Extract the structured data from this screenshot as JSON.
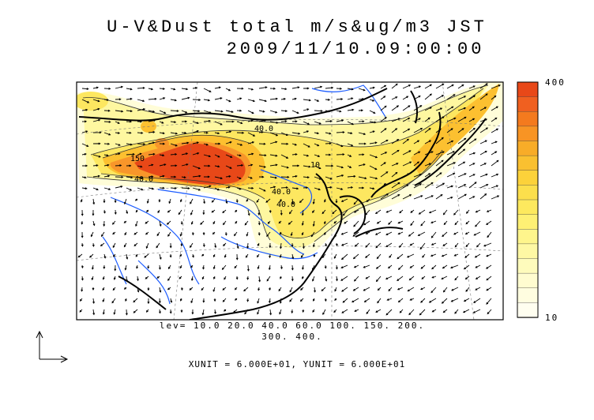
{
  "title": {
    "line1": "U-V&Dust total m/s&ug/m3 JST",
    "line2": "2009/11/10.09:00:00"
  },
  "contour_levels_text": {
    "line1": "lev= 10.0 20.0 40.0 60.0 100. 150. 200.",
    "line2": "300. 400."
  },
  "unit_text": "XUNIT = 6.000E+01, YUNIT = 6.000E+01",
  "colorbar": {
    "max_label": "400",
    "min_label": "10",
    "colors": [
      "#e84818",
      "#f06020",
      "#f47a1e",
      "#f89424",
      "#f8ac28",
      "#fac030",
      "#fcd23a",
      "#fcdf4c",
      "#fde95e",
      "#fef074",
      "#fef58c",
      "#fef8a4",
      "#fefbbc",
      "#fffcd0",
      "#fffde0",
      "#fffef0"
    ]
  },
  "contour_labels": [
    "40.0",
    "150",
    "40.0",
    "40.0",
    "10",
    "40.0"
  ],
  "colors": {
    "coastline": "#000000",
    "river": "#1c5cff",
    "grid": "#555555",
    "dust_high": "#e84818",
    "dust_mid": "#fcd23a",
    "dust_low": "#fffcd0"
  }
}
